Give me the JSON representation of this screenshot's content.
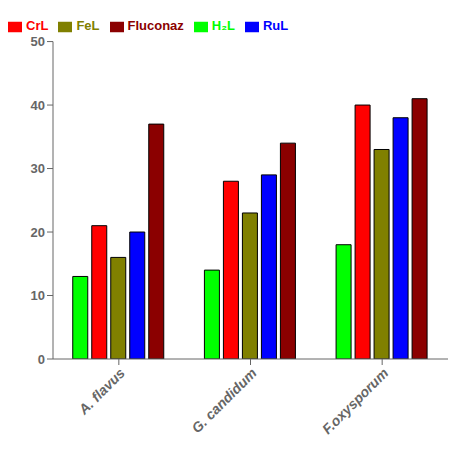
{
  "chart_data": {
    "type": "bar",
    "categories": [
      "A. flavus",
      "G. candidum",
      "F.oxysporum"
    ],
    "series": [
      {
        "name": "H₂L",
        "color": "#00ff00",
        "values": [
          13,
          14,
          18
        ]
      },
      {
        "name": "CrL",
        "color": "#ff0000",
        "values": [
          21,
          28,
          40
        ]
      },
      {
        "name": "FeL",
        "color": "#808000",
        "values": [
          16,
          23,
          33
        ]
      },
      {
        "name": "RuL",
        "color": "#0000ff",
        "values": [
          20,
          29,
          38
        ]
      },
      {
        "name": "Fluconaz",
        "color": "#8b0000",
        "values": [
          37,
          34,
          41
        ]
      }
    ],
    "ylim": [
      0,
      50
    ],
    "yticks": [
      0,
      10,
      20,
      30,
      40,
      50
    ],
    "grid": false,
    "legend": "upper left"
  }
}
